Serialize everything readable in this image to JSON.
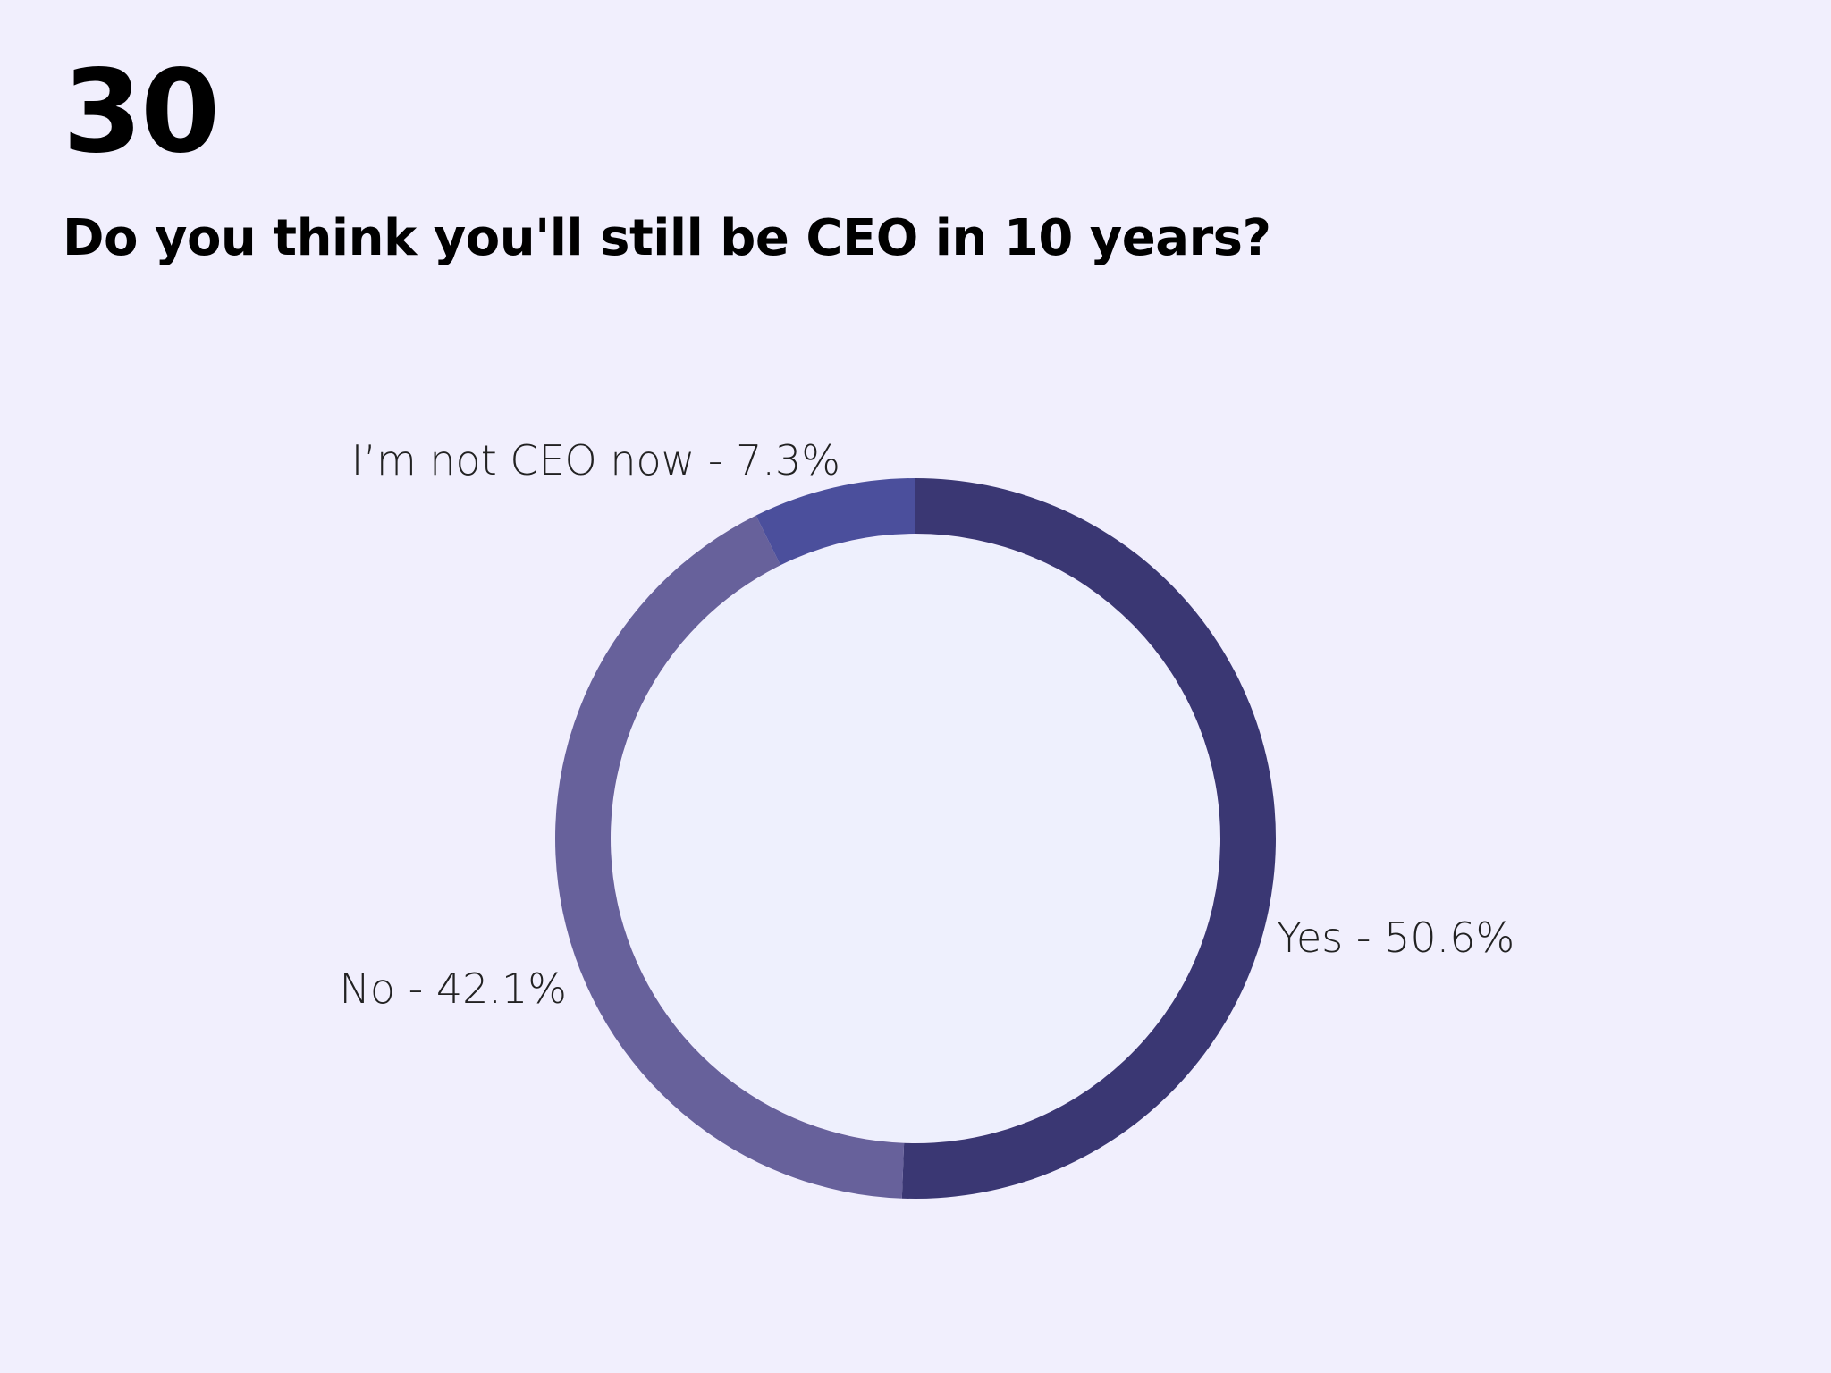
{
  "page_number": "30",
  "colors": {
    "background": "#f1effd",
    "yes": "#3a3773",
    "no": "#67619b",
    "not_ceo": "#4b4f9c"
  },
  "chart_data": {
    "type": "pie",
    "variant": "donut",
    "title": "Do you think you'll still be CEO in 10 years?",
    "slices": [
      {
        "label": "Yes",
        "value": 50.6,
        "display": "Yes - 50.6%",
        "color": "#3a3773"
      },
      {
        "label": "No",
        "value": 42.1,
        "display": "No - 42.1%",
        "color": "#67619b"
      },
      {
        "label": "I’m not CEO now",
        "value": 7.3,
        "display": "I’m not CEO now - 7.3%",
        "color": "#4b4f9c"
      }
    ],
    "start": "12 o'clock",
    "direction": "clockwise",
    "legend": "none",
    "labels": "outside"
  }
}
